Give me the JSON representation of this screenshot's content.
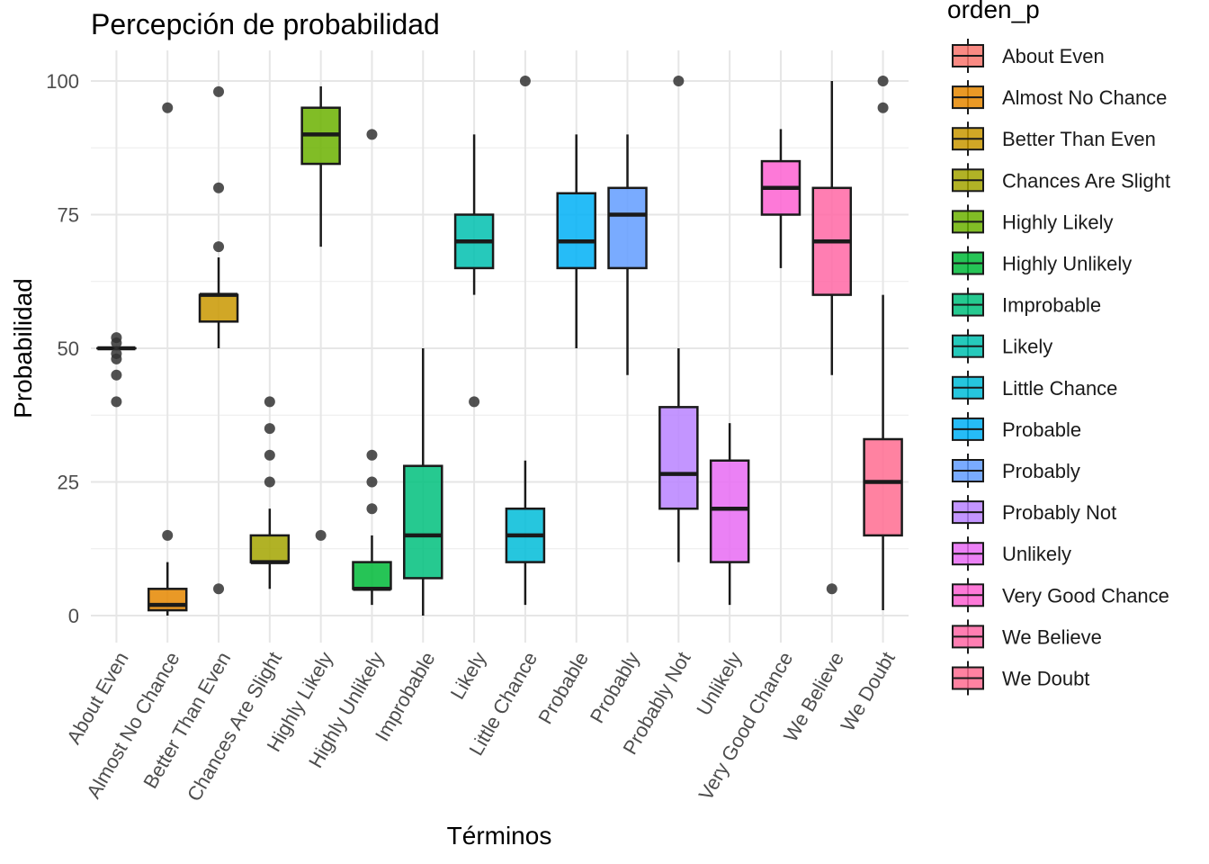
{
  "chart_data": {
    "type": "boxplot",
    "title": "Percepción de probabilidad",
    "xlabel": "Términos",
    "ylabel": "Probabilidad",
    "ylim": [
      -5,
      105
    ],
    "yticks": [
      0,
      25,
      50,
      75,
      100
    ],
    "grid": true,
    "legend": {
      "title": "orden_p",
      "position": "right"
    },
    "categories": [
      "About Even",
      "Almost No Chance",
      "Better Than Even",
      "Chances Are Slight",
      "Highly Likely",
      "Highly Unlikely",
      "Improbable",
      "Likely",
      "Little Chance",
      "Probable",
      "Probably",
      "Probably Not",
      "Unlikely",
      "Very Good Chance",
      "We Believe",
      "We Doubt"
    ],
    "series": [
      {
        "name": "About Even",
        "color": "#F8766D",
        "q1": 50,
        "median": 50,
        "q3": 50,
        "whisker_low": 50,
        "whisker_high": 50,
        "outliers": [
          52,
          51,
          49,
          48,
          45,
          40
        ]
      },
      {
        "name": "Almost No Chance",
        "color": "#E58700",
        "q1": 1,
        "median": 2,
        "q3": 5,
        "whisker_low": 0,
        "whisker_high": 10,
        "outliers": [
          95,
          15
        ]
      },
      {
        "name": "Better Than Even",
        "color": "#C99800",
        "q1": 55,
        "median": 60,
        "q3": 60,
        "whisker_low": 50,
        "whisker_high": 67,
        "outliers": [
          98,
          80,
          69,
          5
        ]
      },
      {
        "name": "Chances Are Slight",
        "color": "#A3A500",
        "q1": 10,
        "median": 10,
        "q3": 15,
        "whisker_low": 5,
        "whisker_high": 20,
        "outliers": [
          40,
          35,
          30,
          25
        ]
      },
      {
        "name": "Highly Likely",
        "color": "#6BB100",
        "q1": 84.5,
        "median": 90,
        "q3": 95,
        "whisker_low": 69,
        "whisker_high": 99,
        "outliers": [
          15
        ]
      },
      {
        "name": "Highly Unlikely",
        "color": "#00BA38",
        "q1": 5,
        "median": 5,
        "q3": 10,
        "whisker_low": 2,
        "whisker_high": 15,
        "outliers": [
          90,
          30,
          25,
          20
        ]
      },
      {
        "name": "Improbable",
        "color": "#00BF7D",
        "q1": 7,
        "median": 15,
        "q3": 28,
        "whisker_low": 0,
        "whisker_high": 50,
        "outliers": []
      },
      {
        "name": "Likely",
        "color": "#00C0AF",
        "q1": 65,
        "median": 70,
        "q3": 75,
        "whisker_low": 60,
        "whisker_high": 90,
        "outliers": [
          40
        ]
      },
      {
        "name": "Little Chance",
        "color": "#00BCD8",
        "q1": 10,
        "median": 15,
        "q3": 20,
        "whisker_low": 2,
        "whisker_high": 29,
        "outliers": [
          100
        ]
      },
      {
        "name": "Probable",
        "color": "#00B0F6",
        "q1": 65,
        "median": 70,
        "q3": 79,
        "whisker_low": 50,
        "whisker_high": 90,
        "outliers": []
      },
      {
        "name": "Probably",
        "color": "#619CFF",
        "q1": 65,
        "median": 75,
        "q3": 80,
        "whisker_low": 45,
        "whisker_high": 90,
        "outliers": []
      },
      {
        "name": "Probably Not",
        "color": "#B983FF",
        "q1": 20,
        "median": 26.5,
        "q3": 39,
        "whisker_low": 10,
        "whisker_high": 50,
        "outliers": [
          100
        ]
      },
      {
        "name": "Unlikely",
        "color": "#E76BF3",
        "q1": 10,
        "median": 20,
        "q3": 29,
        "whisker_low": 2,
        "whisker_high": 36,
        "outliers": []
      },
      {
        "name": "Very Good Chance",
        "color": "#FD61D1",
        "q1": 75,
        "median": 80,
        "q3": 85,
        "whisker_low": 65,
        "whisker_high": 91,
        "outliers": []
      },
      {
        "name": "We Believe",
        "color": "#FF67A4",
        "q1": 60,
        "median": 70,
        "q3": 80,
        "whisker_low": 45,
        "whisker_high": 100,
        "outliers": [
          5
        ]
      },
      {
        "name": "We Doubt",
        "color": "#FF6C91",
        "q1": 15,
        "median": 25,
        "q3": 33,
        "whisker_low": 1,
        "whisker_high": 60,
        "outliers": [
          100,
          95
        ]
      }
    ]
  }
}
